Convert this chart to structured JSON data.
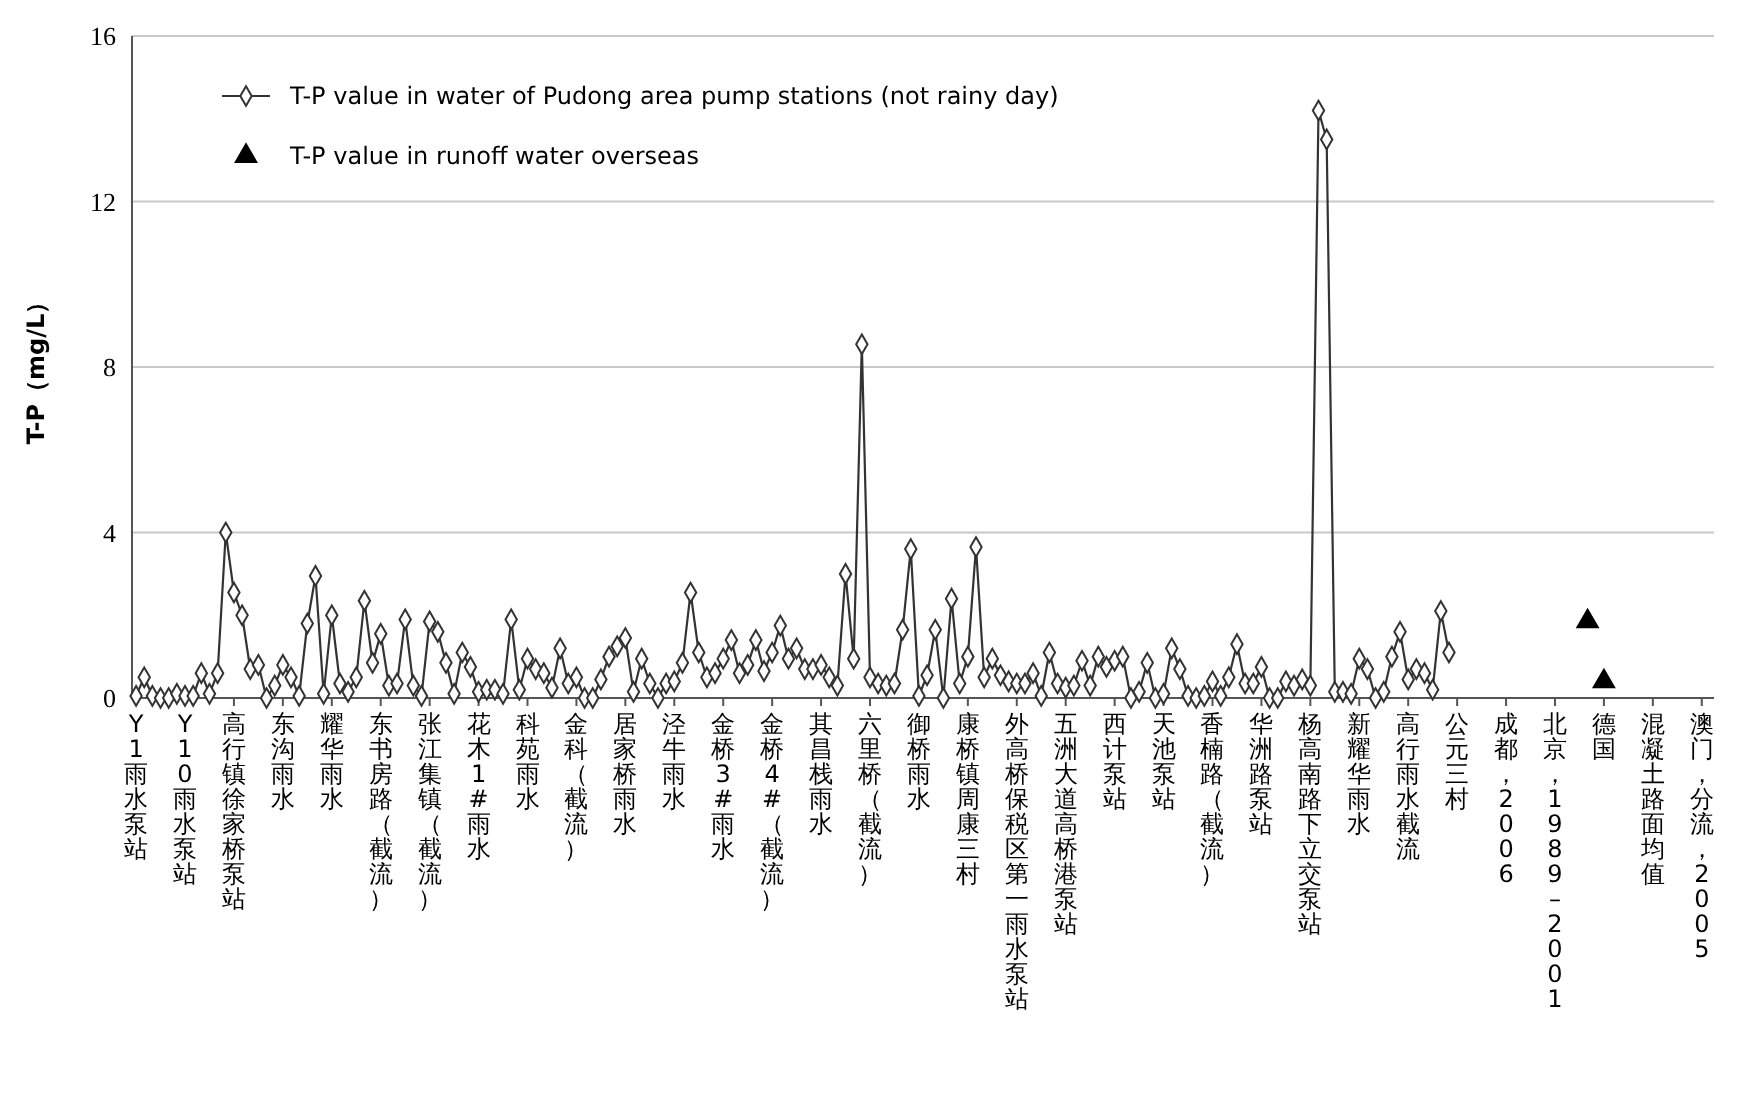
{
  "chart_data": {
    "type": "line",
    "ylabel": "T-P（mg/L）",
    "categories": [
      "Y1雨水泵站",
      null,
      null,
      null,
      null,
      null,
      "Y10雨水泵站",
      null,
      null,
      null,
      null,
      null,
      "高行镇徐家桥泵站",
      null,
      null,
      null,
      null,
      null,
      "东沟雨水",
      null,
      null,
      null,
      null,
      null,
      "耀华雨水",
      null,
      null,
      null,
      null,
      null,
      "东书房路（截流）",
      null,
      null,
      null,
      null,
      null,
      "张江集镇（截流）",
      null,
      null,
      null,
      null,
      null,
      "花木1#雨水",
      null,
      null,
      null,
      null,
      null,
      "科苑雨水",
      null,
      null,
      null,
      null,
      null,
      "金科（截流）",
      null,
      null,
      null,
      null,
      null,
      "居家桥雨水",
      null,
      null,
      null,
      null,
      null,
      "泾牛雨水",
      null,
      null,
      null,
      null,
      null,
      "金桥3#雨水",
      null,
      null,
      null,
      null,
      null,
      "金桥4#（截流）",
      null,
      null,
      null,
      null,
      null,
      "其昌栈雨水",
      null,
      null,
      null,
      null,
      null,
      "六里桥（截流）",
      null,
      null,
      null,
      null,
      null,
      "御桥雨水",
      null,
      null,
      null,
      null,
      null,
      "康桥镇周康三村",
      null,
      null,
      null,
      null,
      null,
      "外高桥保税区第一雨水泵站",
      null,
      null,
      null,
      null,
      null,
      "五洲大道高桥港泵站",
      null,
      null,
      null,
      null,
      null,
      "西计泵站",
      null,
      null,
      null,
      null,
      null,
      "天池泵站",
      null,
      null,
      null,
      null,
      null,
      "香楠路（截流）",
      null,
      null,
      null,
      null,
      null,
      "华洲路泵站",
      null,
      null,
      null,
      null,
      null,
      "杨高南路下立交泵站",
      null,
      null,
      null,
      null,
      null,
      "新耀华雨水",
      null,
      null,
      null,
      null,
      null,
      "高行雨水截流",
      null,
      null,
      null,
      null,
      null,
      "公元三村",
      null,
      null,
      null,
      null,
      null,
      "成都，2006",
      null,
      null,
      null,
      null,
      null,
      "北京，1989–2001",
      null,
      null,
      null,
      null,
      null,
      "德国",
      null,
      null,
      null,
      null,
      null,
      "混凝土路面均值",
      null,
      null,
      null,
      null,
      null,
      "澳门，分流，2005",
      null
    ],
    "series": [
      {
        "name": "T-P value in water of Pudong area pump stations (not rainy day)",
        "type": "line",
        "marker": "diamond",
        "color": "#333333",
        "values": [
          0.05,
          0.5,
          0.05,
          0,
          0,
          0.1,
          0.05,
          0.05,
          0.6,
          0.1,
          0.6,
          4.0,
          2.55,
          2.0,
          0.7,
          0.8,
          0,
          0.3,
          0.8,
          0.5,
          0.05,
          1.8,
          2.95,
          0.1,
          2.0,
          0.35,
          0.15,
          0.5,
          2.35,
          0.85,
          1.55,
          0.3,
          0.35,
          1.9,
          0.3,
          0.05,
          1.85,
          1.6,
          0.85,
          0.1,
          1.1,
          0.75,
          0.15,
          0.2,
          0.2,
          0.1,
          1.9,
          0.2,
          0.95,
          0.7,
          0.6,
          0.25,
          1.2,
          0.35,
          0.5,
          0,
          0,
          0.45,
          1.0,
          1.25,
          1.45,
          0.15,
          0.95,
          0.35,
          0,
          0.35,
          0.4,
          0.85,
          2.55,
          1.1,
          0.5,
          0.6,
          0.95,
          1.4,
          0.6,
          0.8,
          1.4,
          0.65,
          1.1,
          1.75,
          0.95,
          1.2,
          0.7,
          0.7,
          0.8,
          0.5,
          0.3,
          3.0,
          0.95,
          8.55,
          0.5,
          0.35,
          0.3,
          0.35,
          1.65,
          3.6,
          0.05,
          0.55,
          1.65,
          0,
          2.4,
          0.35,
          1.0,
          3.65,
          0.5,
          0.95,
          0.55,
          0.4,
          0.35,
          0.35,
          0.6,
          0.05,
          1.1,
          0.35,
          0.25,
          0.3,
          0.9,
          0.3,
          1.0,
          0.75,
          0.9,
          1.0,
          0,
          0.15,
          0.85,
          0,
          0.1,
          1.2,
          0.7,
          0.05,
          0,
          0.05,
          0.4,
          0.05,
          0.5,
          1.3,
          0.35,
          0.35,
          0.75,
          0,
          0,
          0.4,
          0.3,
          0.45,
          0.3,
          14.2,
          13.5,
          0.15,
          0.15,
          0.1,
          0.95,
          0.7,
          0,
          0.15,
          1.0,
          1.6,
          0.45,
          0.7,
          0.6,
          0.2,
          2.1,
          1.1,
          null,
          null,
          null,
          null,
          null,
          null,
          null,
          null,
          null,
          null,
          null,
          null,
          null,
          null,
          null,
          null,
          null,
          null,
          null,
          null,
          null,
          null,
          null,
          null,
          null,
          null,
          null,
          null,
          null,
          null,
          null,
          null
        ]
      },
      {
        "name": "T-P value in runoff water overseas",
        "type": "scatter",
        "marker": "triangle",
        "color": "#000000",
        "values": [
          null,
          null,
          null,
          null,
          null,
          null,
          null,
          null,
          null,
          null,
          null,
          null,
          null,
          null,
          null,
          null,
          null,
          null,
          null,
          null,
          null,
          null,
          null,
          null,
          null,
          null,
          null,
          null,
          null,
          null,
          null,
          null,
          null,
          null,
          null,
          null,
          null,
          null,
          null,
          null,
          null,
          null,
          null,
          null,
          null,
          null,
          null,
          null,
          null,
          null,
          null,
          null,
          null,
          null,
          null,
          null,
          null,
          null,
          null,
          null,
          null,
          null,
          null,
          null,
          null,
          null,
          null,
          null,
          null,
          null,
          null,
          null,
          null,
          null,
          null,
          null,
          null,
          null,
          null,
          null,
          null,
          null,
          null,
          null,
          null,
          null,
          null,
          null,
          null,
          null,
          null,
          null,
          null,
          null,
          null,
          null,
          null,
          null,
          null,
          null,
          null,
          null,
          null,
          null,
          null,
          null,
          null,
          null,
          null,
          null,
          null,
          null,
          null,
          null,
          null,
          null,
          null,
          null,
          null,
          null,
          null,
          null,
          null,
          null,
          null,
          null,
          null,
          null,
          null,
          null,
          null,
          null,
          null,
          null,
          null,
          null,
          null,
          null,
          null,
          null,
          null,
          null,
          null,
          null,
          null,
          null,
          null,
          null,
          null,
          null,
          null,
          null,
          null,
          null,
          null,
          null,
          null,
          null,
          null,
          null,
          null,
          null,
          null,
          null,
          null,
          null,
          null,
          null,
          null,
          null,
          null,
          null,
          null,
          null,
          null,
          null,
          null,
          null,
          1.85,
          null,
          0.4,
          null,
          null,
          null,
          null,
          null,
          null,
          null,
          null,
          null,
          null,
          null,
          null,
          null
        ]
      }
    ],
    "ylim": [
      0,
      16
    ],
    "yticks": [
      0,
      4,
      8,
      12,
      16
    ],
    "grid": "y",
    "legend": "top left"
  }
}
